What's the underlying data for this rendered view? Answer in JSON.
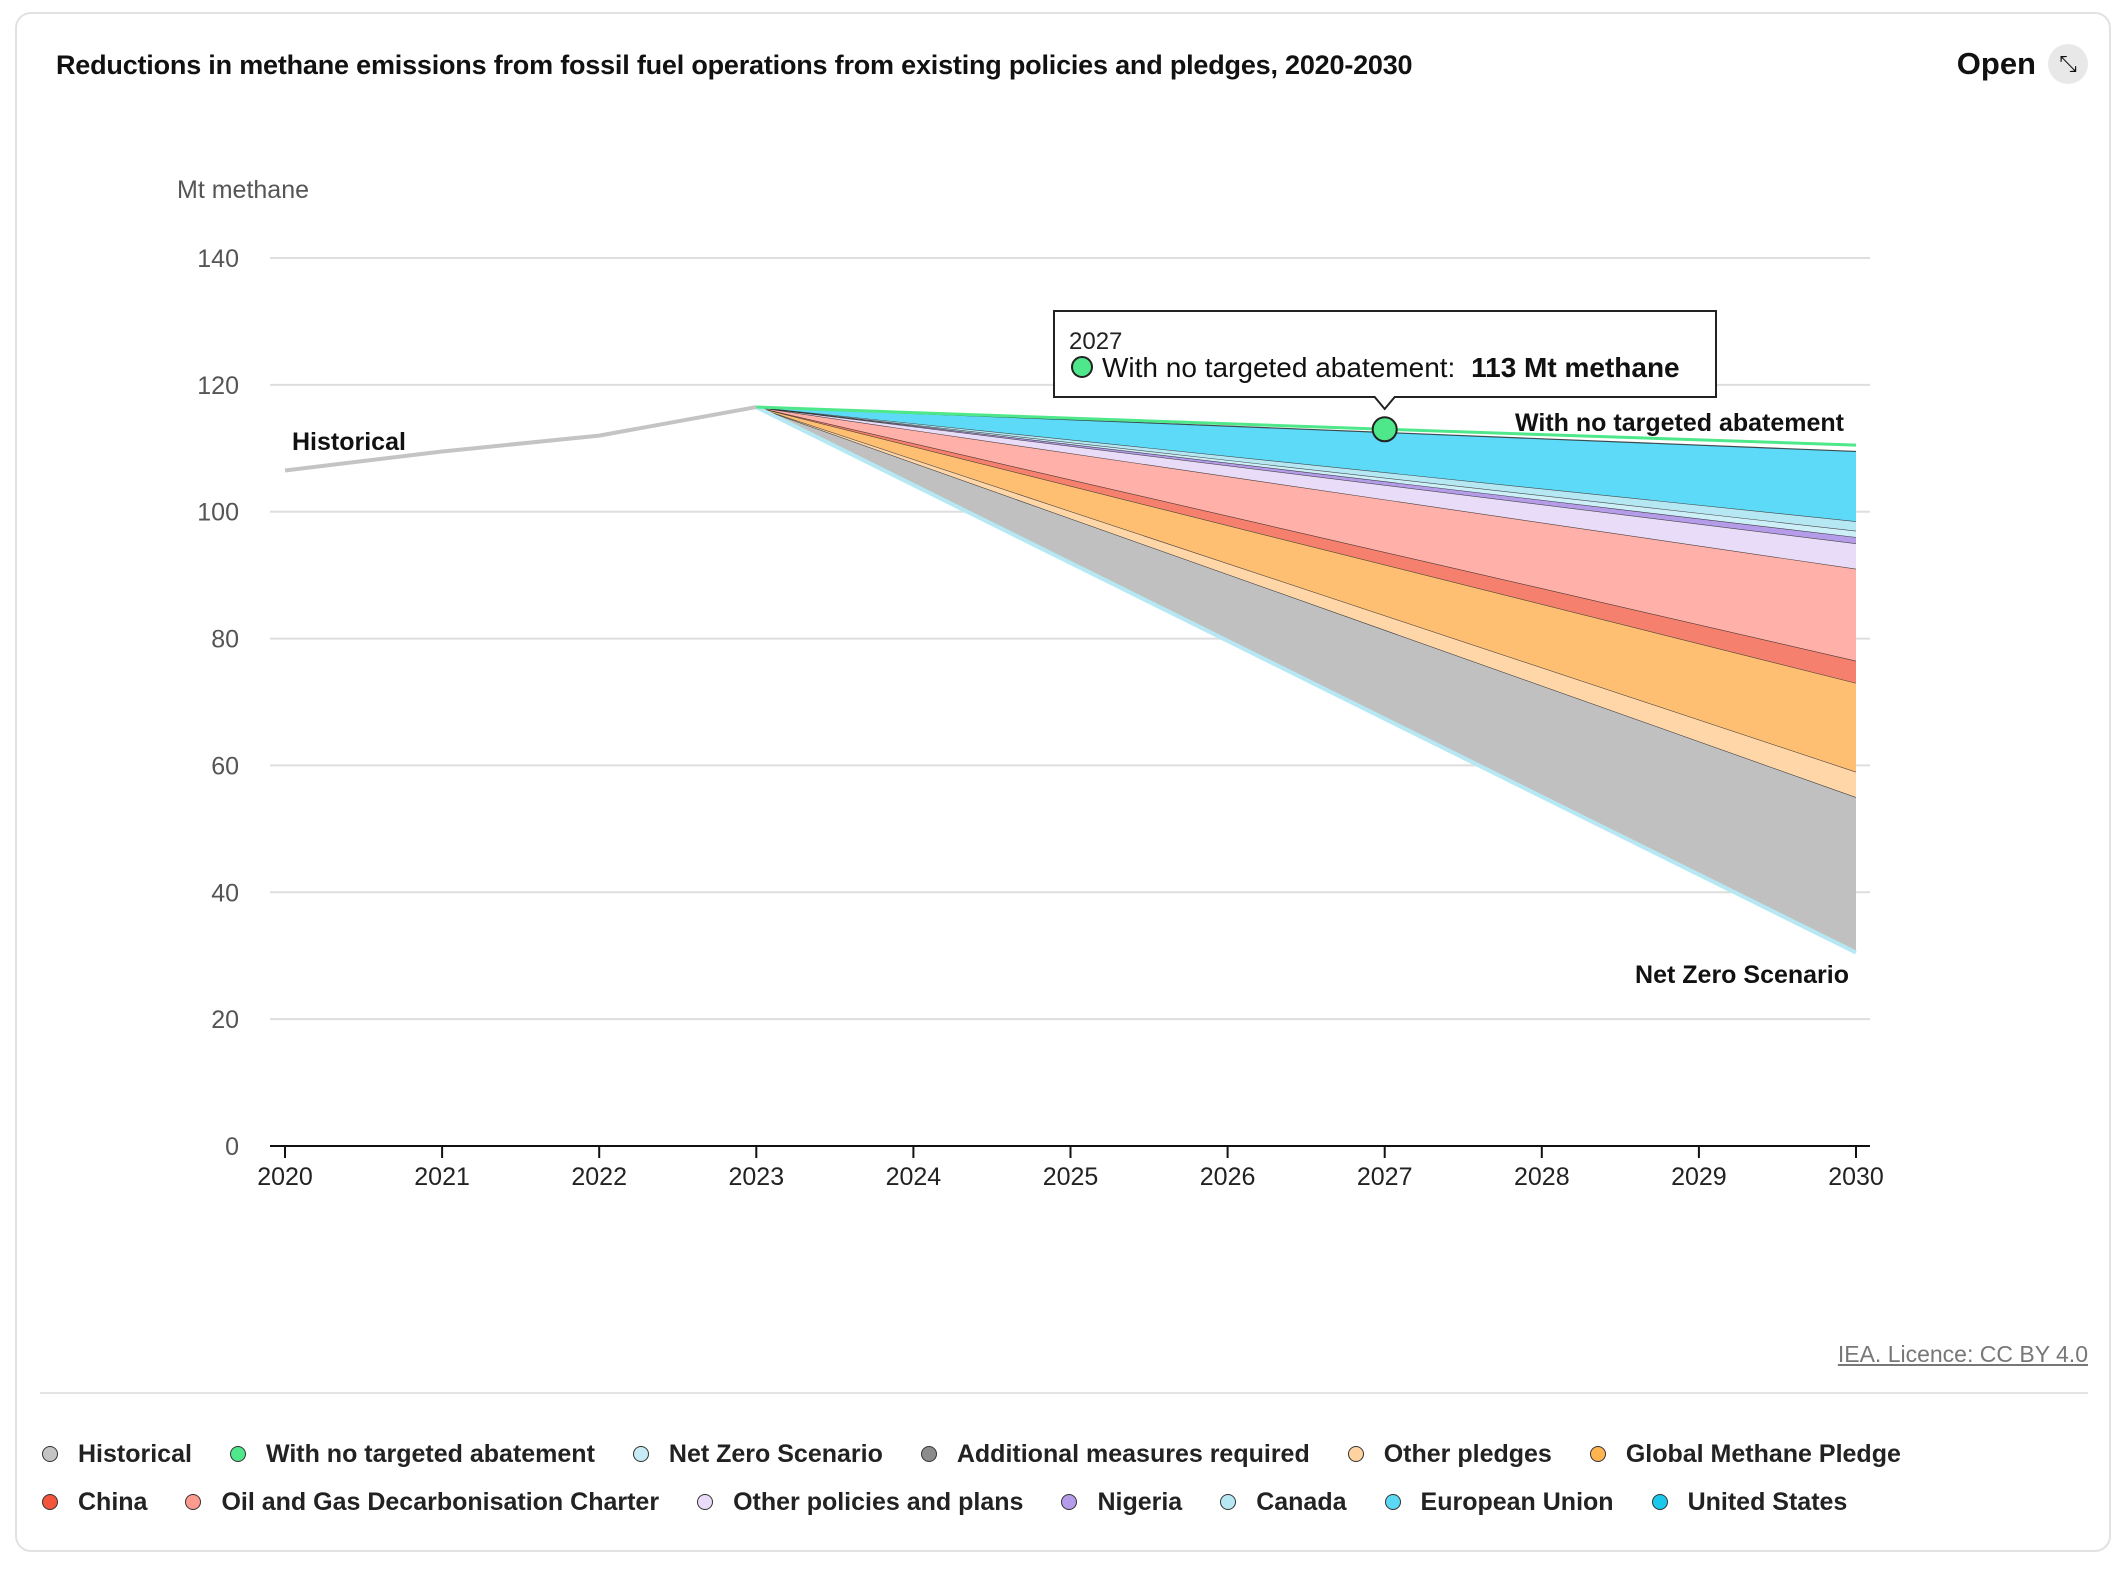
{
  "header": {
    "title": "Reductions in methane emissions from fossil fuel operations from existing policies and pledges, 2020-2030",
    "open_label": "Open",
    "open_icon": "expand-arrow-icon"
  },
  "credit": "IEA. Licence: CC BY 4.0",
  "tooltip": {
    "year": "2027",
    "series": "With no targeted abatement: ",
    "value": "113 Mt methane",
    "color": "#4ee88a"
  },
  "legend": {
    "rows": [
      [
        {
          "label": "Historical",
          "color": "#c4c4c4"
        },
        {
          "label": "With no targeted abatement",
          "color": "#4ee88a"
        },
        {
          "label": "Net Zero Scenario",
          "color": "#c8ecf6"
        },
        {
          "label": "Additional measures required",
          "color": "#8c8c8c"
        },
        {
          "label": "Other pledges",
          "color": "#ffd2a0"
        },
        {
          "label": "Global Methane Pledge",
          "color": "#ffb54f"
        }
      ],
      [
        {
          "label": "China",
          "color": "#f2553c"
        },
        {
          "label": "Oil and Gas Decarbonisation Charter",
          "color": "#ff9a8f"
        },
        {
          "label": "Other policies and plans",
          "color": "#e8dcf8"
        },
        {
          "label": "Nigeria",
          "color": "#b49ce8"
        },
        {
          "label": "Canada",
          "color": "#b6e8f4"
        },
        {
          "label": "European Union",
          "color": "#5bd8f4"
        },
        {
          "label": "United States",
          "color": "#1ac8ec"
        }
      ]
    ]
  },
  "chart_data": {
    "type": "area",
    "ylabel": "Mt methane",
    "ylim": [
      0,
      140
    ],
    "yticks": [
      0,
      20,
      40,
      60,
      80,
      100,
      120,
      140
    ],
    "x": [
      2020,
      2021,
      2022,
      2023,
      2024,
      2025,
      2026,
      2027,
      2028,
      2029,
      2030
    ],
    "grid": true,
    "labels": {
      "historical": "Historical",
      "no_abatement": "With no targeted abatement",
      "net_zero": "Net Zero Scenario"
    },
    "historical": {
      "name": "Historical",
      "x": [
        2020,
        2021,
        2022,
        2023
      ],
      "values": [
        106.5,
        109.5,
        112,
        116.5
      ],
      "color": "#c4c4c4"
    },
    "no_abatement": {
      "name": "With no targeted abatement",
      "x": [
        2023,
        2027,
        2030
      ],
      "values": [
        116.5,
        113,
        110.5
      ],
      "color": "#4ee88a"
    },
    "net_zero": {
      "name": "Net Zero Scenario",
      "x": [
        2023,
        2030
      ],
      "values": [
        116.5,
        30.5
      ],
      "color": "#b6e8f4"
    },
    "bands": {
      "x": [
        2023,
        2030
      ],
      "base": [
        116.5,
        30.5
      ],
      "series": [
        {
          "name": "Additional measures required",
          "values": [
            0,
            24.5
          ],
          "color": "#c0c0c0"
        },
        {
          "name": "Other pledges",
          "values": [
            0,
            4
          ],
          "color": "#ffd6a8"
        },
        {
          "name": "Global Methane Pledge",
          "values": [
            0,
            14
          ],
          "color": "#ffbf73"
        },
        {
          "name": "China",
          "values": [
            0,
            3.5
          ],
          "color": "#f5806e"
        },
        {
          "name": "Oil and Gas Decarbonisation Charter",
          "values": [
            0,
            14.5
          ],
          "color": "#ffb0a8"
        },
        {
          "name": "Other policies and plans",
          "values": [
            0,
            4
          ],
          "color": "#e8dcf8"
        },
        {
          "name": "Nigeria",
          "values": [
            0,
            1
          ],
          "color": "#b49ce8"
        },
        {
          "name": "Canada",
          "values": [
            0,
            1
          ],
          "color": "#cdeff7"
        },
        {
          "name": "European Union",
          "values": [
            0,
            1.5
          ],
          "color": "#b6e8f4"
        },
        {
          "name": "United States",
          "values": [
            0,
            11
          ],
          "color": "#5ddaf7"
        }
      ]
    },
    "highlight": {
      "x": 2027,
      "y": 113
    }
  }
}
